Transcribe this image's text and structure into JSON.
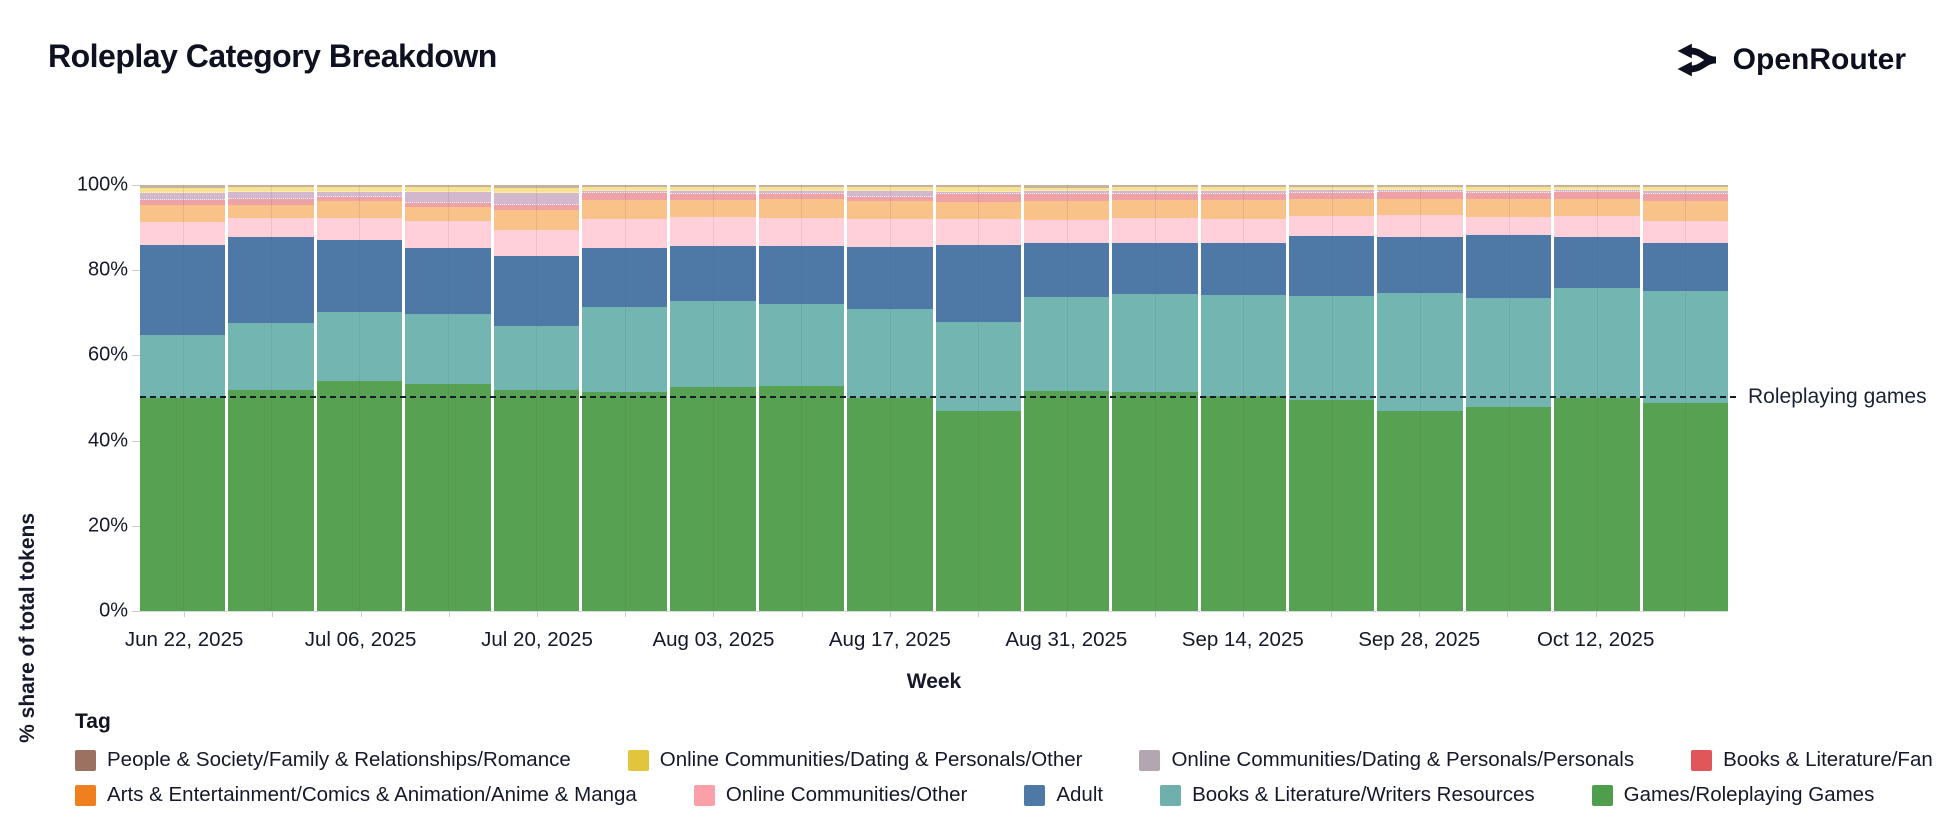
{
  "header": {
    "title": "Roleplay Category Breakdown",
    "brand": "OpenRouter"
  },
  "chart_data": {
    "type": "bar",
    "variant": "stacked-100-percent",
    "title": "Roleplay Category Breakdown",
    "xlabel": "Week",
    "ylabel": "% share of total tokens",
    "ylim": [
      0,
      100
    ],
    "y_tick_labels": [
      "100%",
      "80%",
      "60%",
      "40%",
      "20%",
      "0%"
    ],
    "categories": [
      "Jun 22, 2025",
      "Jun 29, 2025",
      "Jul 06, 2025",
      "Jul 13, 2025",
      "Jul 20, 2025",
      "Jul 27, 2025",
      "Aug 03, 2025",
      "Aug 10, 2025",
      "Aug 17, 2025",
      "Aug 24, 2025",
      "Aug 31, 2025",
      "Sep 07, 2025",
      "Sep 14, 2025",
      "Sep 21, 2025",
      "Sep 28, 2025",
      "Oct 05, 2025",
      "Oct 12, 2025",
      "Oct 19, 2025"
    ],
    "x_tick_labels_shown": [
      "Jun 22, 2025",
      "Jul 06, 2025",
      "Jul 20, 2025",
      "Aug 03, 2025",
      "Aug 17, 2025",
      "Aug 31, 2025",
      "Sep 14, 2025",
      "Sep 28, 2025",
      "Oct 12, 2025"
    ],
    "x_tick_label_every": 2,
    "legend_position": "bottom",
    "annotation": {
      "label": "Roleplaying games",
      "y": 50,
      "style": "dashed-horizontal-line"
    },
    "series": [
      {
        "name": "Games/Roleplaying Games",
        "color": "#57a152",
        "values": [
          50.3,
          52.2,
          54.3,
          53.4,
          52.0,
          51.6,
          52.8,
          53.0,
          50.2,
          47.1,
          51.8,
          51.4,
          50.4,
          49.5,
          47.1,
          48.1,
          50.2,
          48.9
        ]
      },
      {
        "name": "Books & Literature/Writers Resources",
        "color": "#72b5b1",
        "values": [
          14.7,
          15.8,
          16.1,
          16.4,
          14.9,
          20.2,
          20.4,
          19.5,
          21.0,
          21.0,
          22.2,
          23.0,
          23.7,
          24.6,
          27.8,
          25.6,
          26.1,
          26.5
        ]
      },
      {
        "name": "Adult",
        "color": "#4e79a7",
        "values": [
          21.4,
          20.2,
          17.2,
          15.5,
          16.5,
          13.8,
          12.9,
          13.6,
          14.7,
          18.1,
          12.7,
          12.0,
          12.3,
          14.0,
          13.3,
          14.9,
          11.9,
          11.3
        ]
      },
      {
        "name": "Online Communities/Other",
        "color": "#ffd0d9",
        "values": [
          5.4,
          4.4,
          5.2,
          6.4,
          6.0,
          6.9,
          6.7,
          6.7,
          6.5,
          6.0,
          5.5,
          5.8,
          5.6,
          4.7,
          5.0,
          4.2,
          5.0,
          5.3
        ]
      },
      {
        "name": "Arts & Entertainment/Comics & Animation/Anime & Manga",
        "color": "#f8c289",
        "values": [
          4.0,
          3.2,
          3.8,
          3.2,
          4.8,
          4.4,
          4.1,
          4.3,
          4.3,
          4.1,
          4.5,
          4.3,
          4.5,
          4.1,
          3.9,
          4.3,
          4.1,
          4.7
        ]
      },
      {
        "name": "Books & Literature/Fan Fiction",
        "color": "#efa2a6",
        "values": [
          1.2,
          1.4,
          1.0,
          1.0,
          1.2,
          1.6,
          1.5,
          1.3,
          1.0,
          1.8,
          1.7,
          1.5,
          1.4,
          1.4,
          1.6,
          1.4,
          1.5,
          1.6
        ]
      },
      {
        "name": "Online Communities/Dating & Personals/Personals",
        "color": "#d2b7cd",
        "values": [
          1.3,
          1.4,
          1.0,
          2.4,
          2.6,
          0.4,
          0.5,
          0.5,
          1.2,
          0.4,
          0.3,
          0.5,
          0.5,
          0.4,
          0.3,
          0.3,
          0.3,
          0.4
        ]
      },
      {
        "name": "Online Communities/Dating & Personals/Other",
        "color": "#f6e293",
        "values": [
          1.1,
          0.9,
          0.9,
          0.8,
          1.0,
          0.6,
          0.7,
          0.7,
          0.7,
          0.8,
          0.7,
          0.6,
          0.7,
          0.6,
          0.5,
          0.6,
          0.6,
          0.7
        ]
      },
      {
        "name": "People & Society/Family & Relationships/Romance",
        "color": "#c6b39c",
        "values": [
          0.6,
          0.5,
          0.5,
          0.5,
          0.6,
          0.5,
          0.4,
          0.4,
          0.4,
          0.5,
          0.6,
          0.5,
          0.5,
          0.4,
          0.4,
          0.5,
          0.4,
          0.5
        ]
      }
    ]
  },
  "legend": {
    "title": "Tag",
    "rows": [
      [
        {
          "label": "People & Society/Family & Relationships/Romance",
          "color": "#9b7162",
          "pattern": "solid"
        },
        {
          "label": "Online Communities/Dating & Personals/Other",
          "color": "#e2c53d",
          "pattern": "solid"
        },
        {
          "label": "Online Communities/Dating & Personals/Personals",
          "color": "#b3a6b0",
          "pattern": "dots"
        },
        {
          "label": "Books & Literature/Fan Fiction",
          "color": "#e15759",
          "pattern": "solid"
        }
      ],
      [
        {
          "label": "Arts & Entertainment/Comics & Animation/Anime & Manga",
          "color": "#f0801f",
          "pattern": "solid"
        },
        {
          "label": "Online Communities/Other",
          "color": "#fb9fa8",
          "pattern": "solid"
        },
        {
          "label": "Adult",
          "color": "#4e79a7",
          "pattern": "solid"
        },
        {
          "label": "Books & Literature/Writers Resources",
          "color": "#70b0ac",
          "pattern": "solid"
        },
        {
          "label": "Games/Roleplaying Games",
          "color": "#4f9e4c",
          "pattern": "solid"
        }
      ]
    ]
  }
}
